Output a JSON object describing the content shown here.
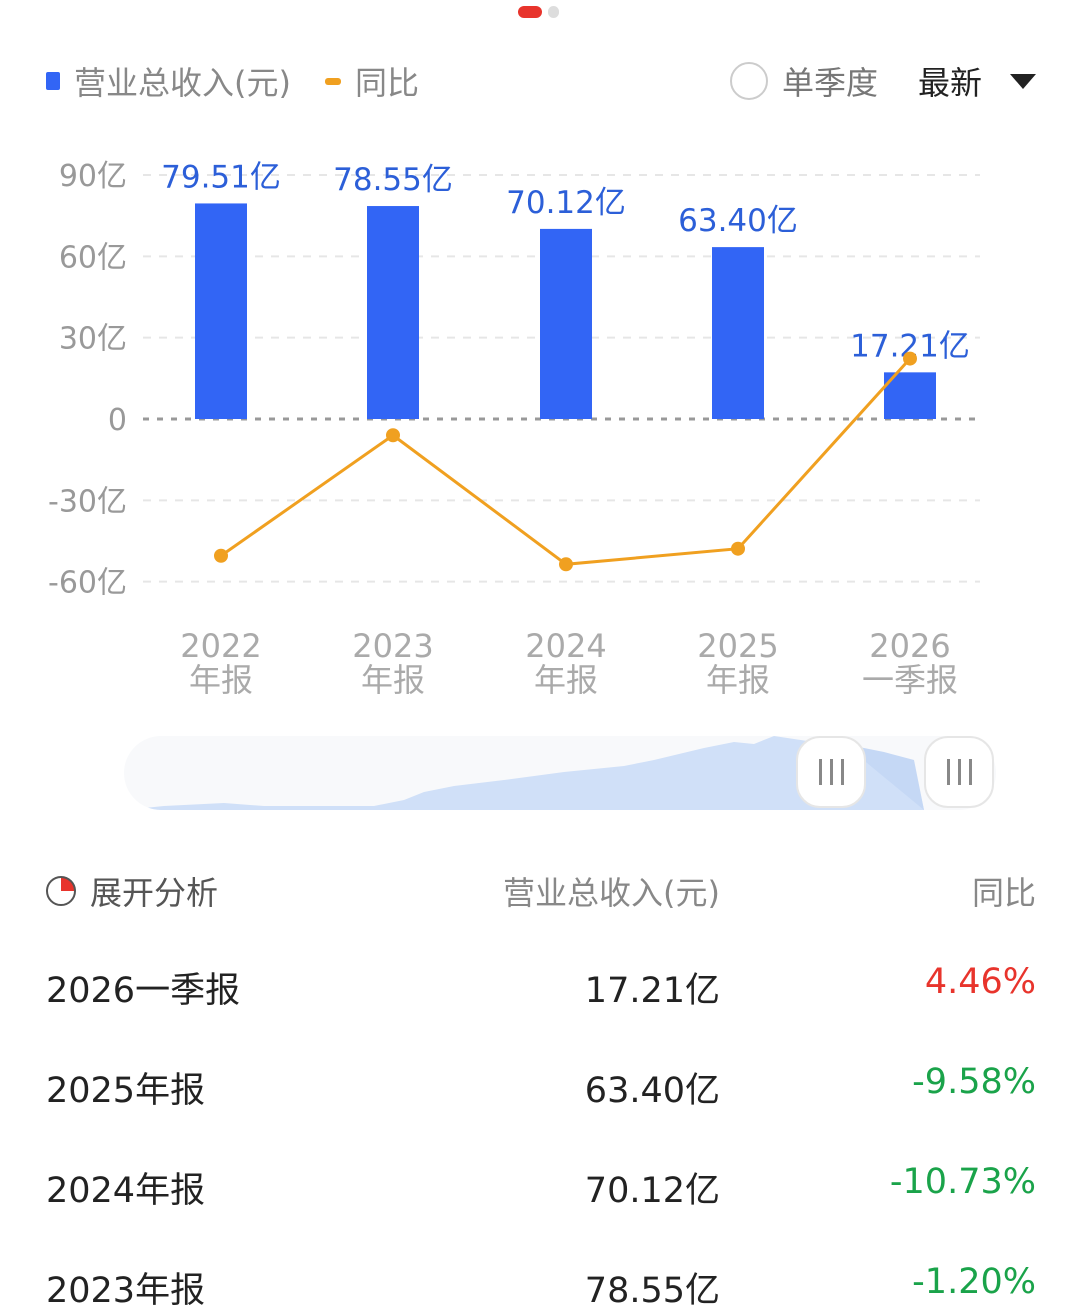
{
  "pager": {
    "active": 0,
    "count": 2
  },
  "legend": {
    "bar_label": "营业总收入(元)",
    "line_label": "同比"
  },
  "controls": {
    "single_quarter": "单季度",
    "single_quarter_checked": false,
    "period": "最新"
  },
  "colors": {
    "bar": "#3265f5",
    "line": "#f0a020",
    "up": "#e8342c",
    "down": "#1aa34a"
  },
  "chart_data": {
    "type": "bar+line",
    "categories": [
      [
        "2022",
        "年报"
      ],
      [
        "2023",
        "年报"
      ],
      [
        "2024",
        "年报"
      ],
      [
        "2025",
        "年报"
      ],
      [
        "2026",
        "一季报"
      ]
    ],
    "series": [
      {
        "name": "营业总收入(元)",
        "type": "bar",
        "unit": "亿",
        "values": [
          79.51,
          78.55,
          70.12,
          63.4,
          17.21
        ],
        "labels": [
          "79.51亿",
          "78.55亿",
          "70.12亿",
          "63.40亿",
          "17.21亿"
        ]
      },
      {
        "name": "同比",
        "type": "line",
        "unit": "%",
        "values": [
          -10.1,
          -1.2,
          -10.73,
          -9.58,
          4.46
        ]
      }
    ],
    "y_ticks": [
      90,
      60,
      30,
      0,
      -30,
      -60
    ],
    "y_tick_labels": [
      "90亿",
      "60亿",
      "30亿",
      "0",
      "-30亿",
      "-60亿"
    ],
    "ylim": [
      -60,
      90
    ],
    "grid": true
  },
  "table": {
    "expand_label": "展开分析",
    "col_revenue": "营业总收入(元)",
    "col_yoy": "同比",
    "rows": [
      {
        "period": "2026一季报",
        "revenue": "17.21亿",
        "yoy": "4.46%",
        "dir": "up"
      },
      {
        "period": "2025年报",
        "revenue": "63.40亿",
        "yoy": "-9.58%",
        "dir": "down"
      },
      {
        "period": "2024年报",
        "revenue": "70.12亿",
        "yoy": "-10.73%",
        "dir": "down"
      },
      {
        "period": "2023年报",
        "revenue": "78.55亿",
        "yoy": "-1.20%",
        "dir": "down"
      }
    ]
  }
}
